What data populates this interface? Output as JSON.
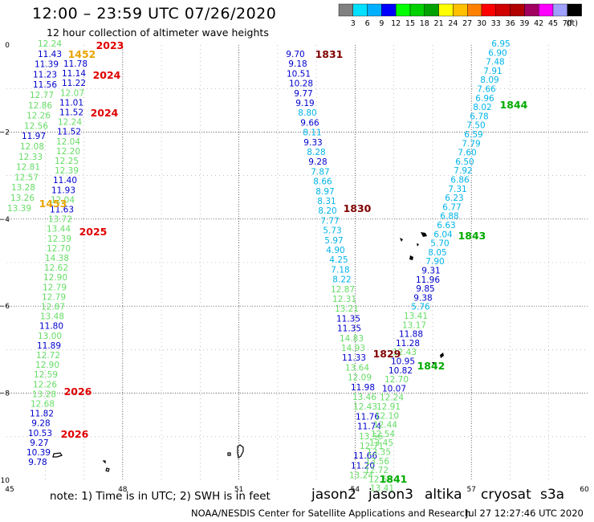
{
  "header": {
    "title": "12:00 – 23:59 UTC 07/26/2020",
    "subtitle": "12 hour collection of altimeter wave heights"
  },
  "colorbar": {
    "colors": [
      "#808080",
      "#00e0ff",
      "#00b0ff",
      "#0000ff",
      "#00ff00",
      "#00d000",
      "#00a000",
      "#ffff00",
      "#ffc000",
      "#ff8000",
      "#ff0000",
      "#d00000",
      "#b00000",
      "#a00060",
      "#ff00ff",
      "#a0a0ff",
      "#000000"
    ],
    "labels": [
      "3",
      "6",
      "9",
      "12",
      "15",
      "18",
      "21",
      "24",
      "27",
      "30",
      "33",
      "36",
      "39",
      "42",
      "45",
      "70",
      "(ft)"
    ]
  },
  "axes": {
    "x_ticks": [
      "45",
      "48",
      "51",
      "54",
      "57",
      "60"
    ],
    "y_ticks": [
      "0",
      "−2",
      "−4",
      "−6",
      "−8",
      "−10"
    ]
  },
  "palette": {
    "altika": "#e8a400",
    "cryosat": "#e00000",
    "s3a": "#800000",
    "jason2": "#0000cc",
    "jason3": "#00aa00",
    "light_green": "#66dd66",
    "cyan": "#00b4e8",
    "dark_green": "#008800",
    "dark_red": "#990000"
  },
  "legend": {
    "note": "note: 1) Time is in UTC; 2) SWH is in feet",
    "satellites": [
      {
        "name": "jason2",
        "color": "#0000cc"
      },
      {
        "name": "jason3",
        "color": "#00aa00"
      },
      {
        "name": "altika",
        "color": "#e8a400"
      },
      {
        "name": "cryosat",
        "color": "#e00000"
      },
      {
        "name": "s3a",
        "color": "#800000"
      }
    ]
  },
  "footer": {
    "credit": "NOAA/NESDIS Center for Satellite Applications and Research",
    "timestamp": "Jul 27 12:27:46 UTC 2020"
  },
  "tracks": [
    {
      "name": "left-track",
      "values": [
        {
          "t": "12.24",
          "c": "light_green"
        },
        {
          "t": "11.43",
          "c": "jason2"
        },
        {
          "t": "11.39",
          "c": "jason2"
        },
        {
          "t": "11.23",
          "c": "jason2"
        },
        {
          "t": "11.56",
          "c": "jason2"
        },
        {
          "t": "12.77",
          "c": "light_green"
        },
        {
          "t": "12.86",
          "c": "light_green"
        },
        {
          "t": "12.26",
          "c": "light_green"
        },
        {
          "t": "12.56",
          "c": "light_green"
        },
        {
          "t": "11.97",
          "c": "jason2"
        },
        {
          "t": "12.08",
          "c": "light_green"
        },
        {
          "t": "12.33",
          "c": "light_green"
        },
        {
          "t": "12.81",
          "c": "light_green"
        },
        {
          "t": "12.57",
          "c": "light_green"
        },
        {
          "t": "13.28",
          "c": "light_green"
        },
        {
          "t": "13.26",
          "c": "light_green"
        },
        {
          "t": "13.39",
          "c": "light_green"
        }
      ]
    },
    {
      "name": "left-track-2",
      "values": [
        {
          "t": "11.78",
          "c": "jason2"
        },
        {
          "t": "11.14",
          "c": "jason2"
        },
        {
          "t": "11.22",
          "c": "jason2"
        },
        {
          "t": "12.07",
          "c": "light_green"
        },
        {
          "t": "11.01",
          "c": "jason2"
        },
        {
          "t": "11.52",
          "c": "jason2"
        },
        {
          "t": "12.24",
          "c": "light_green"
        },
        {
          "t": "11.52",
          "c": "jason2"
        },
        {
          "t": "12.04",
          "c": "light_green"
        },
        {
          "t": "12.20",
          "c": "light_green"
        },
        {
          "t": "12.25",
          "c": "light_green"
        },
        {
          "t": "12.39",
          "c": "light_green"
        },
        {
          "t": "11.40",
          "c": "jason2"
        },
        {
          "t": "11.93",
          "c": "jason2"
        },
        {
          "t": "12.04",
          "c": "light_green"
        },
        {
          "t": "11.63",
          "c": "jason2"
        },
        {
          "t": "13.72",
          "c": "light_green"
        },
        {
          "t": "13.44",
          "c": "light_green"
        },
        {
          "t": "12.39",
          "c": "light_green"
        },
        {
          "t": "12.70",
          "c": "light_green"
        },
        {
          "t": "14.38",
          "c": "light_green"
        },
        {
          "t": "12.62",
          "c": "light_green"
        },
        {
          "t": "12.90",
          "c": "light_green"
        },
        {
          "t": "12.79",
          "c": "light_green"
        },
        {
          "t": "12.79",
          "c": "light_green"
        },
        {
          "t": "12.87",
          "c": "light_green"
        },
        {
          "t": "13.48",
          "c": "light_green"
        },
        {
          "t": "11.80",
          "c": "jason2"
        },
        {
          "t": "13.00",
          "c": "light_green"
        },
        {
          "t": "11.89",
          "c": "jason2"
        },
        {
          "t": "12.72",
          "c": "light_green"
        },
        {
          "t": "12.90",
          "c": "light_green"
        },
        {
          "t": "12.59",
          "c": "light_green"
        },
        {
          "t": "12.26",
          "c": "light_green"
        },
        {
          "t": "13.28",
          "c": "light_green"
        },
        {
          "t": "12.68",
          "c": "light_green"
        },
        {
          "t": "11.82",
          "c": "jason2"
        },
        {
          "t": "9.28",
          "c": "jason2"
        },
        {
          "t": "10.53",
          "c": "jason2"
        },
        {
          "t": "9.27",
          "c": "jason2"
        },
        {
          "t": "10.39",
          "c": "jason2"
        },
        {
          "t": "9.78",
          "c": "jason2"
        }
      ]
    },
    {
      "name": "middle-track",
      "values": [
        {
          "t": "9.70",
          "c": "jason2"
        },
        {
          "t": "9.18",
          "c": "jason2"
        },
        {
          "t": "10.51",
          "c": "jason2"
        },
        {
          "t": "10.28",
          "c": "jason2"
        },
        {
          "t": "9.77",
          "c": "jason2"
        },
        {
          "t": "9.19",
          "c": "jason2"
        },
        {
          "t": "8.80",
          "c": "cyan"
        },
        {
          "t": "9.66",
          "c": "jason2"
        },
        {
          "t": "8.11",
          "c": "cyan"
        },
        {
          "t": "9.33",
          "c": "jason2"
        },
        {
          "t": "8.28",
          "c": "cyan"
        },
        {
          "t": "9.28",
          "c": "jason2"
        },
        {
          "t": "7.87",
          "c": "cyan"
        },
        {
          "t": "8.66",
          "c": "cyan"
        },
        {
          "t": "8.97",
          "c": "cyan"
        },
        {
          "t": "8.31",
          "c": "cyan"
        },
        {
          "t": "8.20",
          "c": "cyan"
        },
        {
          "t": "7.77",
          "c": "cyan"
        },
        {
          "t": "5.73",
          "c": "cyan"
        },
        {
          "t": "5.97",
          "c": "cyan"
        },
        {
          "t": "4.90",
          "c": "cyan"
        },
        {
          "t": "4.25",
          "c": "cyan"
        },
        {
          "t": "7.18",
          "c": "cyan"
        },
        {
          "t": "8.22",
          "c": "cyan"
        },
        {
          "t": "12.87",
          "c": "light_green"
        },
        {
          "t": "12.31",
          "c": "light_green"
        },
        {
          "t": "13.21",
          "c": "light_green"
        },
        {
          "t": "11.35",
          "c": "jason2"
        },
        {
          "t": "11.35",
          "c": "jason2"
        },
        {
          "t": "14.83",
          "c": "light_green"
        },
        {
          "t": "14.93",
          "c": "light_green"
        },
        {
          "t": "11.33",
          "c": "jason2"
        },
        {
          "t": "13.64",
          "c": "light_green"
        },
        {
          "t": "12.09",
          "c": "light_green"
        },
        {
          "t": "11.98",
          "c": "jason2"
        },
        {
          "t": "13.46",
          "c": "light_green"
        },
        {
          "t": "12.43",
          "c": "light_green"
        },
        {
          "t": "11.76",
          "c": "jason2"
        },
        {
          "t": "11.74",
          "c": "jason2"
        },
        {
          "t": "13.56",
          "c": "light_green"
        },
        {
          "t": "12.71",
          "c": "light_green"
        },
        {
          "t": "11.66",
          "c": "jason2"
        },
        {
          "t": "11.20",
          "c": "jason2"
        },
        {
          "t": "13.24",
          "c": "light_green"
        }
      ]
    },
    {
      "name": "right-track",
      "values": [
        {
          "t": "6.95",
          "c": "cyan"
        },
        {
          "t": "6.90",
          "c": "cyan"
        },
        {
          "t": "7.48",
          "c": "cyan"
        },
        {
          "t": "7.91",
          "c": "cyan"
        },
        {
          "t": "8.09",
          "c": "cyan"
        },
        {
          "t": "7.66",
          "c": "cyan"
        },
        {
          "t": "6.96",
          "c": "cyan"
        },
        {
          "t": "8.02",
          "c": "cyan"
        },
        {
          "t": "6.78",
          "c": "cyan"
        },
        {
          "t": "7.50",
          "c": "cyan"
        },
        {
          "t": "6.59",
          "c": "cyan"
        },
        {
          "t": "7.79",
          "c": "cyan"
        },
        {
          "t": "7.60",
          "c": "cyan"
        },
        {
          "t": "6.50",
          "c": "cyan"
        },
        {
          "t": "7.92",
          "c": "cyan"
        },
        {
          "t": "6.86",
          "c": "cyan"
        },
        {
          "t": "7.31",
          "c": "cyan"
        },
        {
          "t": "6.23",
          "c": "cyan"
        },
        {
          "t": "6.77",
          "c": "cyan"
        },
        {
          "t": "6.88",
          "c": "cyan"
        },
        {
          "t": "6.63",
          "c": "cyan"
        },
        {
          "t": "6.04",
          "c": "cyan"
        },
        {
          "t": "5.70",
          "c": "cyan"
        },
        {
          "t": "8.05",
          "c": "cyan"
        },
        {
          "t": "7.90",
          "c": "cyan"
        },
        {
          "t": "9.31",
          "c": "jason2"
        },
        {
          "t": "11.96",
          "c": "jason2"
        },
        {
          "t": "9.85",
          "c": "jason2"
        },
        {
          "t": "9.38",
          "c": "jason2"
        },
        {
          "t": "5.76",
          "c": "cyan"
        },
        {
          "t": "13.41",
          "c": "light_green"
        },
        {
          "t": "13.17",
          "c": "light_green"
        },
        {
          "t": "11.88",
          "c": "jason2"
        },
        {
          "t": "11.28",
          "c": "jason2"
        },
        {
          "t": "12.43",
          "c": "light_green"
        },
        {
          "t": "10.95",
          "c": "jason2"
        },
        {
          "t": "10.82",
          "c": "jason2"
        },
        {
          "t": "12.70",
          "c": "light_green"
        },
        {
          "t": "10.07",
          "c": "jason2"
        },
        {
          "t": "12.24",
          "c": "light_green"
        },
        {
          "t": "12.91",
          "c": "light_green"
        },
        {
          "t": "12.10",
          "c": "light_green"
        },
        {
          "t": "12.44",
          "c": "light_green"
        },
        {
          "t": "12.54",
          "c": "light_green"
        },
        {
          "t": "13.45",
          "c": "light_green"
        },
        {
          "t": "13.35",
          "c": "light_green"
        },
        {
          "t": "13.56",
          "c": "light_green"
        },
        {
          "t": "12.72",
          "c": "light_green"
        },
        {
          "t": "12.69",
          "c": "light_green"
        },
        {
          "t": "13.41",
          "c": "light_green"
        }
      ]
    }
  ],
  "time_labels": [
    {
      "t": "2023",
      "c": "cryosat"
    },
    {
      "t": "1452",
      "c": "altika"
    },
    {
      "t": "2024",
      "c": "cryosat"
    },
    {
      "t": "2024",
      "c": "cryosat"
    },
    {
      "t": "1453",
      "c": "altika"
    },
    {
      "t": "2025",
      "c": "cryosat"
    },
    {
      "t": "2026",
      "c": "cryosat"
    },
    {
      "t": "2026",
      "c": "cryosat"
    },
    {
      "t": "1831",
      "c": "s3a"
    },
    {
      "t": "1830",
      "c": "s3a"
    },
    {
      "t": "1829",
      "c": "s3a"
    },
    {
      "t": "1841",
      "c": "jason3"
    },
    {
      "t": "1844",
      "c": "jason3"
    },
    {
      "t": "1843",
      "c": "jason3"
    },
    {
      "t": "1842",
      "c": "jason3"
    }
  ]
}
